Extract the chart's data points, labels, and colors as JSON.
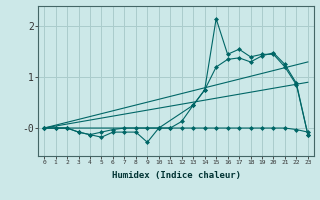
{
  "title": "",
  "xlabel": "Humidex (Indice chaleur)",
  "background_color": "#cce8e8",
  "grid_color": "#aacccc",
  "line_color": "#006666",
  "xlim": [
    -0.5,
    23.5
  ],
  "ylim": [
    -0.55,
    2.4
  ],
  "yticks": [
    0,
    1,
    2
  ],
  "ytick_labels": [
    "-0",
    "1",
    "2"
  ],
  "xticks": [
    0,
    1,
    2,
    3,
    4,
    5,
    6,
    7,
    8,
    9,
    10,
    11,
    12,
    13,
    14,
    15,
    16,
    17,
    18,
    19,
    20,
    21,
    22,
    23
  ],
  "series_jagged_x": [
    0,
    1,
    2,
    3,
    4,
    5,
    6,
    7,
    8,
    9,
    10,
    11,
    12,
    13,
    14,
    15,
    16,
    17,
    18,
    19,
    20,
    21,
    22,
    23
  ],
  "series_jagged_y": [
    0,
    0,
    0,
    -0.08,
    -0.13,
    -0.18,
    -0.08,
    -0.08,
    -0.08,
    -0.28,
    0,
    0,
    0.13,
    0.45,
    0.75,
    2.15,
    1.45,
    1.55,
    1.4,
    1.45,
    1.45,
    1.2,
    0.85,
    -0.13
  ],
  "series_flat_x": [
    0,
    1,
    2,
    3,
    4,
    5,
    6,
    7,
    8,
    9,
    10,
    11,
    12,
    13,
    14,
    15,
    16,
    17,
    18,
    19,
    20,
    21,
    22,
    23
  ],
  "series_flat_y": [
    0,
    0,
    0,
    -0.08,
    -0.13,
    -0.08,
    -0.03,
    0,
    0,
    0,
    0,
    0,
    0,
    0,
    0,
    0,
    0,
    0,
    0,
    0,
    0,
    0,
    -0.03,
    -0.08
  ],
  "series_line1_x": [
    0,
    23
  ],
  "series_line1_y": [
    0,
    1.3
  ],
  "series_line2_x": [
    0,
    23
  ],
  "series_line2_y": [
    0,
    0.9
  ],
  "series_smooth_x": [
    0,
    10,
    13,
    14,
    15,
    16,
    17,
    18,
    19,
    20,
    21,
    22,
    23
  ],
  "series_smooth_y": [
    0,
    0,
    0.45,
    0.75,
    1.2,
    1.35,
    1.38,
    1.3,
    1.42,
    1.48,
    1.25,
    0.88,
    -0.13
  ]
}
